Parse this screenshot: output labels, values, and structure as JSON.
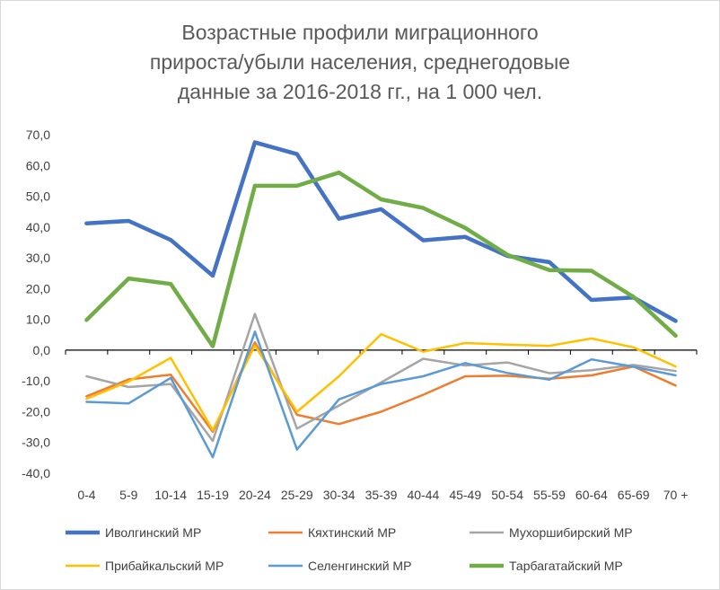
{
  "chart_data": {
    "type": "line",
    "title": "Возрастные профили миграционного\nприроста/убыли населения, среднегодовые\nданные за 2016-2018 гг., на 1 000 чел.",
    "xlabel": "",
    "ylabel": "",
    "ylim": [
      -40,
      70
    ],
    "yticks": [
      "70,0",
      "60,0",
      "50,0",
      "40,0",
      "30,0",
      "20,0",
      "10,0",
      "0,0",
      "-10,0",
      "-20,0",
      "-30,0",
      "-40,0"
    ],
    "ytick_values": [
      70,
      60,
      50,
      40,
      30,
      20,
      10,
      0,
      -10,
      -20,
      -30,
      -40
    ],
    "categories": [
      "0-4",
      "5-9",
      "10-14",
      "15-19",
      "20-24",
      "25-29",
      "30-34",
      "35-39",
      "40-44",
      "45-49",
      "50-54",
      "55-59",
      "60-64",
      "65-69",
      "70 +"
    ],
    "grid": false,
    "legend_position": "bottom",
    "series": [
      {
        "name": "Иволгинский МР",
        "color": "#4472c4",
        "width": 4.5,
        "values": [
          41.2,
          42.0,
          35.8,
          24.2,
          67.5,
          63.7,
          42.7,
          45.8,
          35.7,
          36.8,
          30.6,
          28.6,
          16.3,
          17.1,
          9.5
        ]
      },
      {
        "name": "Кяхтинский МР",
        "color": "#ed7d31",
        "width": 2.5,
        "values": [
          -15.0,
          -9.5,
          -8.0,
          -26.5,
          2.5,
          -21.0,
          -24.0,
          -20.0,
          -14.5,
          -8.5,
          -8.3,
          -9.3,
          -8.2,
          -5.3,
          -11.5
        ]
      },
      {
        "name": "Мухоршибирский МР",
        "color": "#a5a5a5",
        "width": 2.5,
        "values": [
          -8.5,
          -12.0,
          -11.0,
          -29.5,
          11.8,
          -25.5,
          -18.0,
          -10.5,
          -2.8,
          -5.0,
          -4.0,
          -7.5,
          -6.5,
          -4.8,
          -6.8
        ]
      },
      {
        "name": "Прибайкальский МР",
        "color": "#ffc000",
        "width": 2.5,
        "values": [
          -15.8,
          -10.2,
          -2.5,
          -26.0,
          1.5,
          -20.0,
          -8.5,
          5.2,
          -0.5,
          2.3,
          1.8,
          1.4,
          3.8,
          0.9,
          -5.3
        ]
      },
      {
        "name": "Селенгинский МР",
        "color": "#5b9bd5",
        "width": 2.5,
        "values": [
          -16.8,
          -17.3,
          -9.0,
          -34.8,
          6.0,
          -32.3,
          -16.0,
          -11.0,
          -8.5,
          -4.2,
          -7.4,
          -9.6,
          -3.0,
          -5.4,
          -8.2
        ]
      },
      {
        "name": "Тарбагатайский МР",
        "color": "#70ad47",
        "width": 4.5,
        "values": [
          9.8,
          23.3,
          21.5,
          1.3,
          53.4,
          53.4,
          57.7,
          49.0,
          46.2,
          39.7,
          31.0,
          26.0,
          25.8,
          17.3,
          4.7
        ]
      }
    ]
  }
}
